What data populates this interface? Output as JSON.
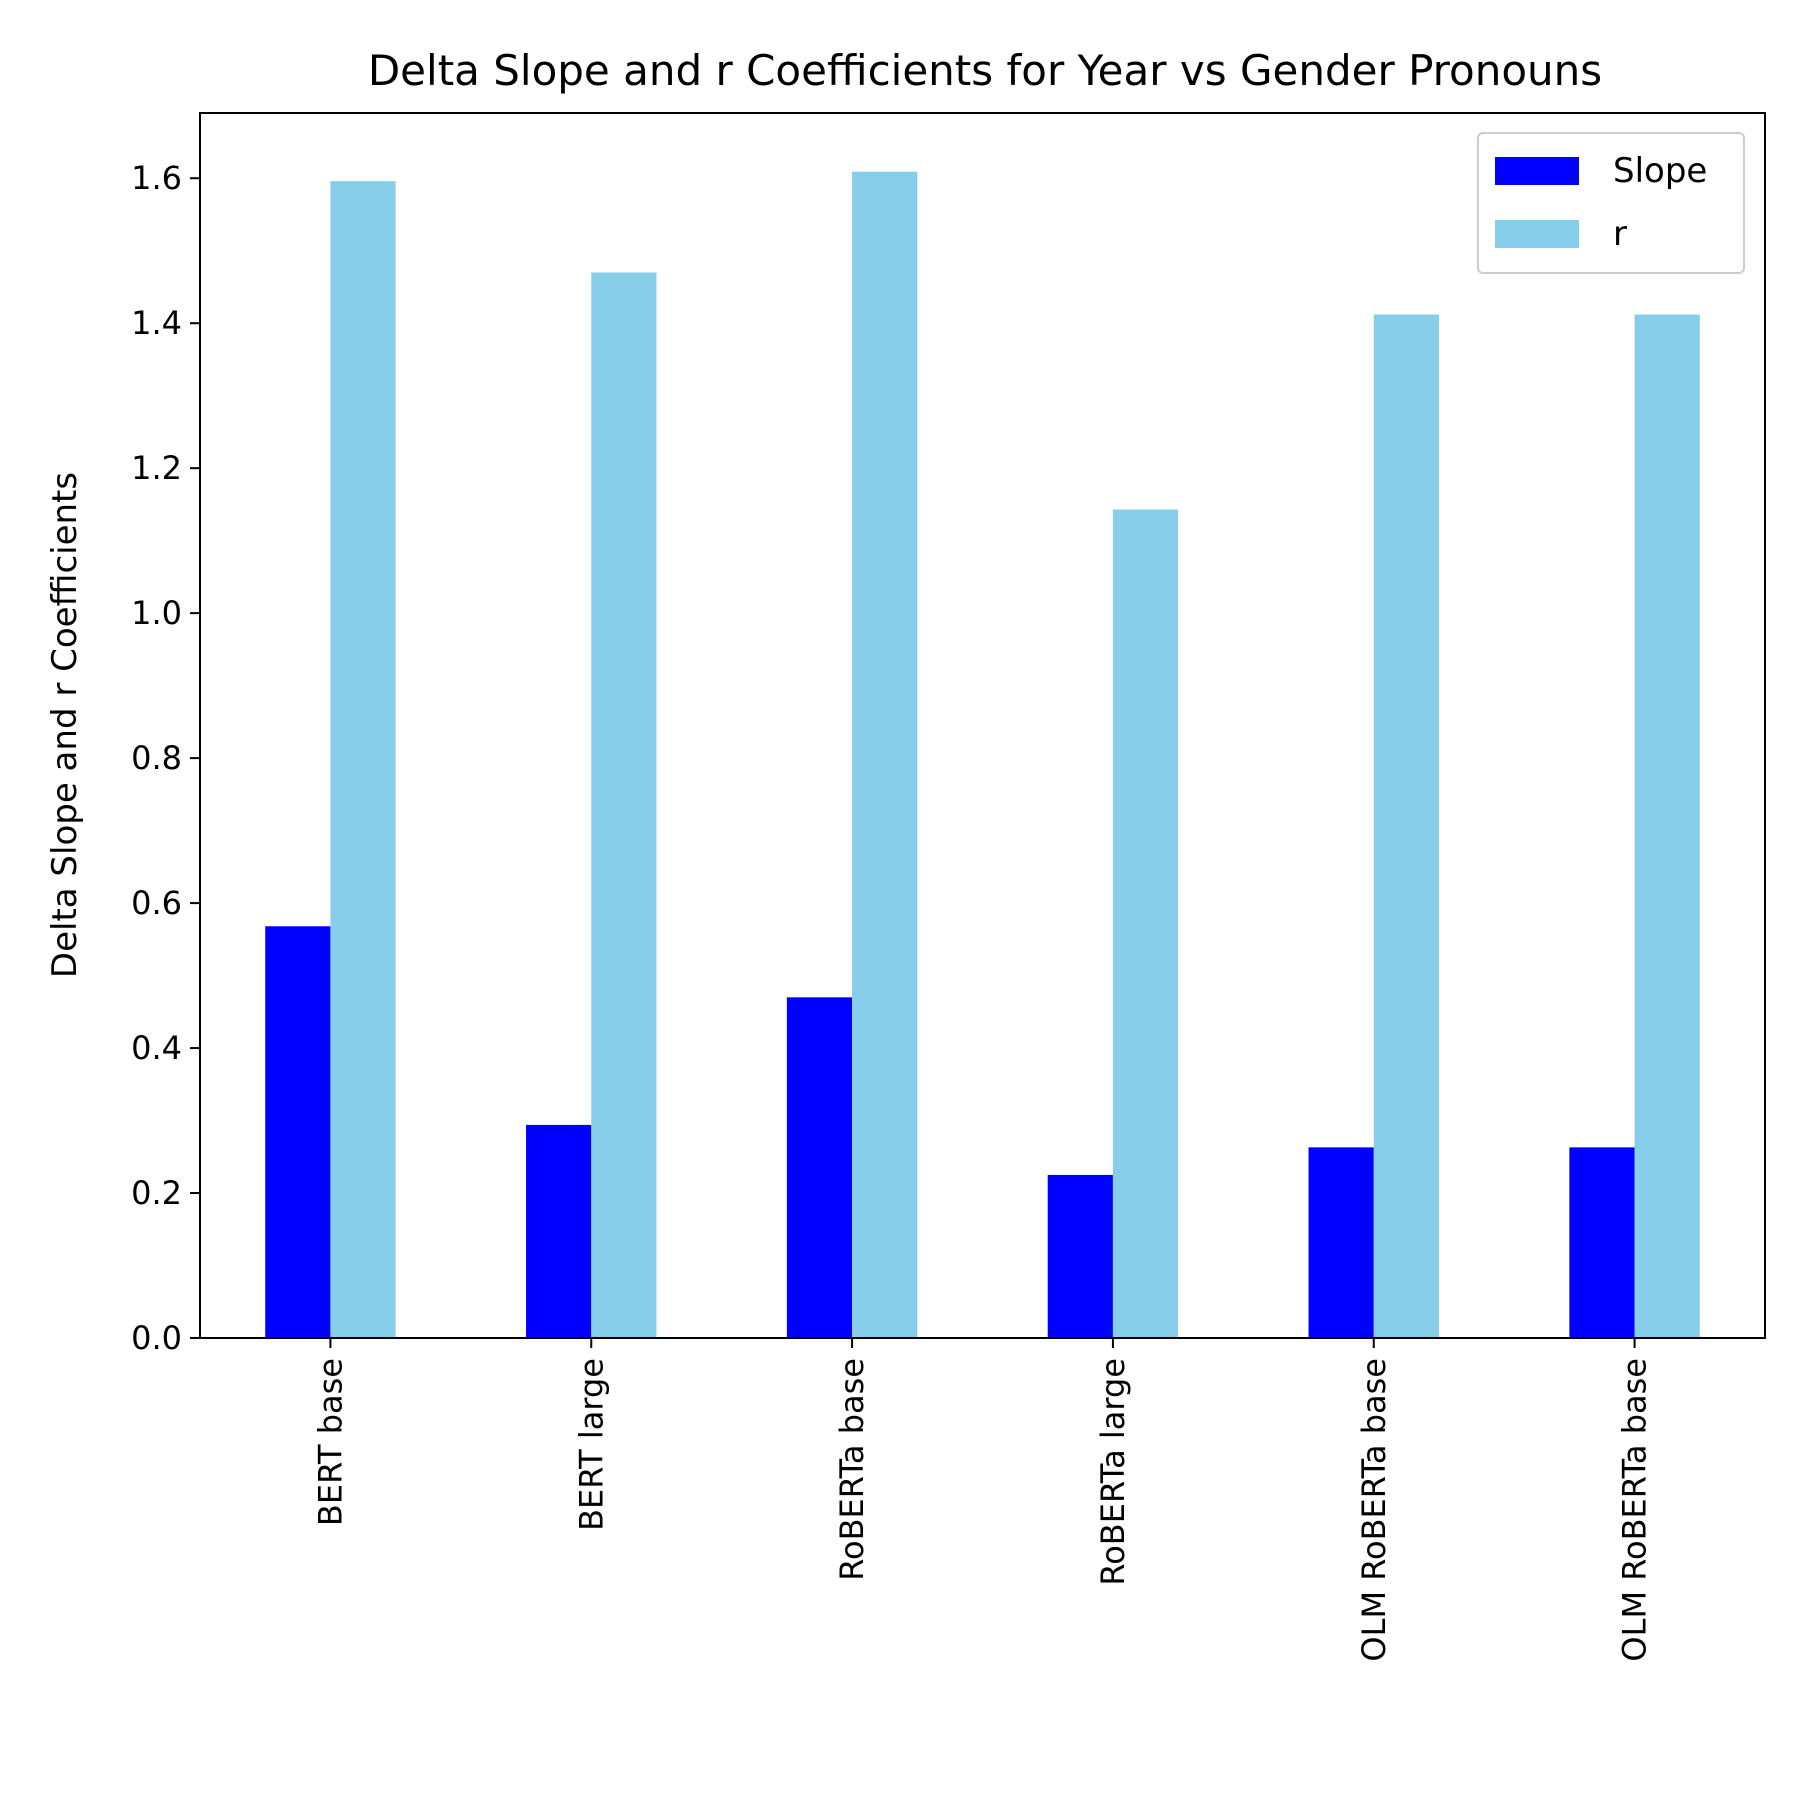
{
  "chart_data": {
    "type": "bar",
    "title": "Delta Slope and r Coefficients for Year vs Gender Pronouns",
    "xlabel": "",
    "ylabel": "Delta Slope and r Coefficients",
    "categories": [
      "BERT base",
      "BERT large",
      "RoBERTa base",
      "RoBERTa large",
      "OLM RoBERTa base",
      "OLM RoBERTa base"
    ],
    "series": [
      {
        "name": "Slope",
        "color": "#0000ff",
        "values": [
          0.568,
          0.294,
          0.47,
          0.225,
          0.263,
          0.263
        ]
      },
      {
        "name": "r",
        "color": "#87ceeb",
        "values": [
          1.596,
          1.47,
          1.609,
          1.143,
          1.412,
          1.412
        ]
      }
    ],
    "ylim": [
      0,
      1.69
    ],
    "yticks": [
      0.0,
      0.2,
      0.4,
      0.6,
      0.8,
      1.0,
      1.2,
      1.4,
      1.6
    ],
    "ytick_labels": [
      "0.0",
      "0.2",
      "0.4",
      "0.6",
      "0.8",
      "1.0",
      "1.2",
      "1.4",
      "1.6"
    ],
    "grid": false,
    "legend_position": "top-right"
  }
}
